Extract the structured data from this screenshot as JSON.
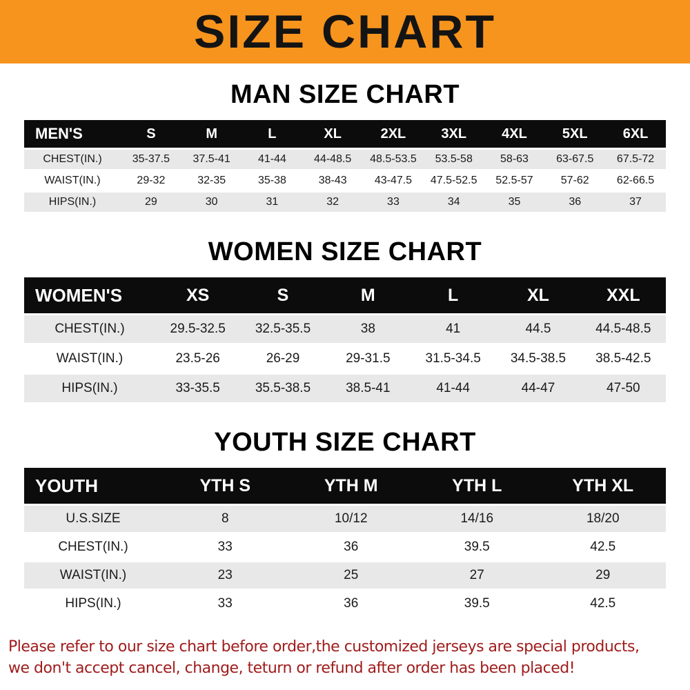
{
  "banner": {
    "title": "SIZE CHART",
    "bg_color": "#f7941d"
  },
  "colors": {
    "header_row_bg": "#0c0c0c",
    "alt_row_bg": "#e8e8e8",
    "notice_text": "#a01c1c"
  },
  "chart_data": [
    {
      "type": "table",
      "title": "MAN SIZE CHART",
      "header": [
        "MEN'S",
        "S",
        "M",
        "L",
        "XL",
        "2XL",
        "3XL",
        "4XL",
        "5XL",
        "6XL"
      ],
      "rows": [
        [
          "CHEST(IN.)",
          "35-37.5",
          "37.5-41",
          "41-44",
          "44-48.5",
          "48.5-53.5",
          "53.5-58",
          "58-63",
          "63-67.5",
          "67.5-72"
        ],
        [
          "WAIST(IN.)",
          "29-32",
          "32-35",
          "35-38",
          "38-43",
          "43-47.5",
          "47.5-52.5",
          "52.5-57",
          "57-62",
          "62-66.5"
        ],
        [
          "HIPS(IN.)",
          "29",
          "30",
          "31",
          "32",
          "33",
          "34",
          "35",
          "36",
          "37"
        ]
      ]
    },
    {
      "type": "table",
      "title": "WOMEN SIZE CHART",
      "header": [
        "WOMEN'S",
        "XS",
        "S",
        "M",
        "L",
        "XL",
        "XXL"
      ],
      "rows": [
        [
          "CHEST(IN.)",
          "29.5-32.5",
          "32.5-35.5",
          "38",
          "41",
          "44.5",
          "44.5-48.5"
        ],
        [
          "WAIST(IN.)",
          "23.5-26",
          "26-29",
          "29-31.5",
          "31.5-34.5",
          "34.5-38.5",
          "38.5-42.5"
        ],
        [
          "HIPS(IN.)",
          "33-35.5",
          "35.5-38.5",
          "38.5-41",
          "41-44",
          "44-47",
          "47-50"
        ]
      ]
    },
    {
      "type": "table",
      "title": "YOUTH SIZE CHART",
      "header": [
        "YOUTH",
        "YTH S",
        "YTH M",
        "YTH L",
        "YTH XL"
      ],
      "rows": [
        [
          "U.S.SIZE",
          "8",
          "10/12",
          "14/16",
          "18/20"
        ],
        [
          "CHEST(IN.)",
          "33",
          "36",
          "39.5",
          "42.5"
        ],
        [
          "WAIST(IN.)",
          "23",
          "25",
          "27",
          "29"
        ],
        [
          "HIPS(IN.)",
          "33",
          "36",
          "39.5",
          "42.5"
        ]
      ]
    }
  ],
  "footer": {
    "lines": [
      "Please refer to our size chart before order,the customized jerseys are special products,",
      "we don't accept cancel, change, teturn or refund after order has been placed!"
    ]
  }
}
